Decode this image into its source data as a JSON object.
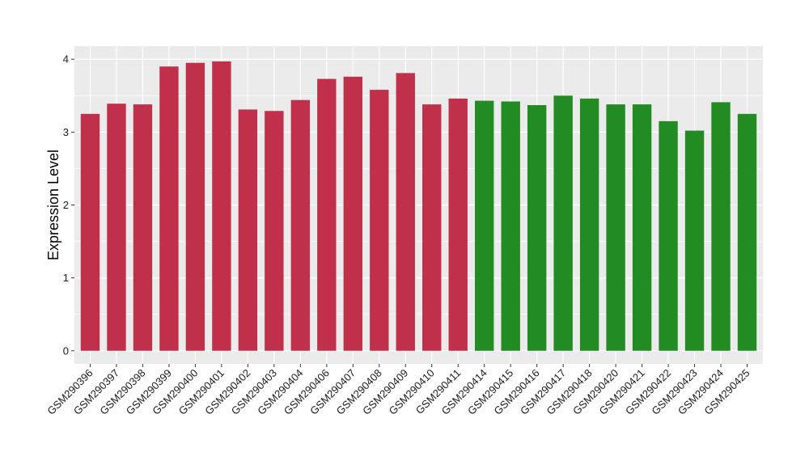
{
  "chart_data": {
    "type": "bar",
    "title": "",
    "xlabel": "",
    "ylabel": "Expression Level",
    "ylim": [
      -0.18,
      4.18
    ],
    "yticks": [
      0,
      1,
      2,
      3,
      4
    ],
    "grid": true,
    "panel_background": "#ebebeb",
    "categories": [
      "GSM290396",
      "GSM290397",
      "GSM290398",
      "GSM290399",
      "GSM290400",
      "GSM290401",
      "GSM290402",
      "GSM290403",
      "GSM290404",
      "GSM290406",
      "GSM290407",
      "GSM290408",
      "GSM290409",
      "GSM290410",
      "GSM290411",
      "GSM290414",
      "GSM290415",
      "GSM290416",
      "GSM290417",
      "GSM290418",
      "GSM290420",
      "GSM290421",
      "GSM290422",
      "GSM290423",
      "GSM290424",
      "GSM290425"
    ],
    "values": [
      3.25,
      3.39,
      3.38,
      3.9,
      3.95,
      3.97,
      3.31,
      3.29,
      3.44,
      3.73,
      3.76,
      3.58,
      3.81,
      3.38,
      3.46,
      3.43,
      3.42,
      3.37,
      3.5,
      3.46,
      3.38,
      3.38,
      3.15,
      3.02,
      3.41,
      3.25
    ],
    "groups": [
      "a",
      "a",
      "a",
      "a",
      "a",
      "a",
      "a",
      "a",
      "a",
      "a",
      "a",
      "a",
      "a",
      "a",
      "a",
      "b",
      "b",
      "b",
      "b",
      "b",
      "b",
      "b",
      "b",
      "b",
      "b",
      "b"
    ],
    "group_colors": {
      "a": "#c0304a",
      "b": "#228b22"
    }
  }
}
